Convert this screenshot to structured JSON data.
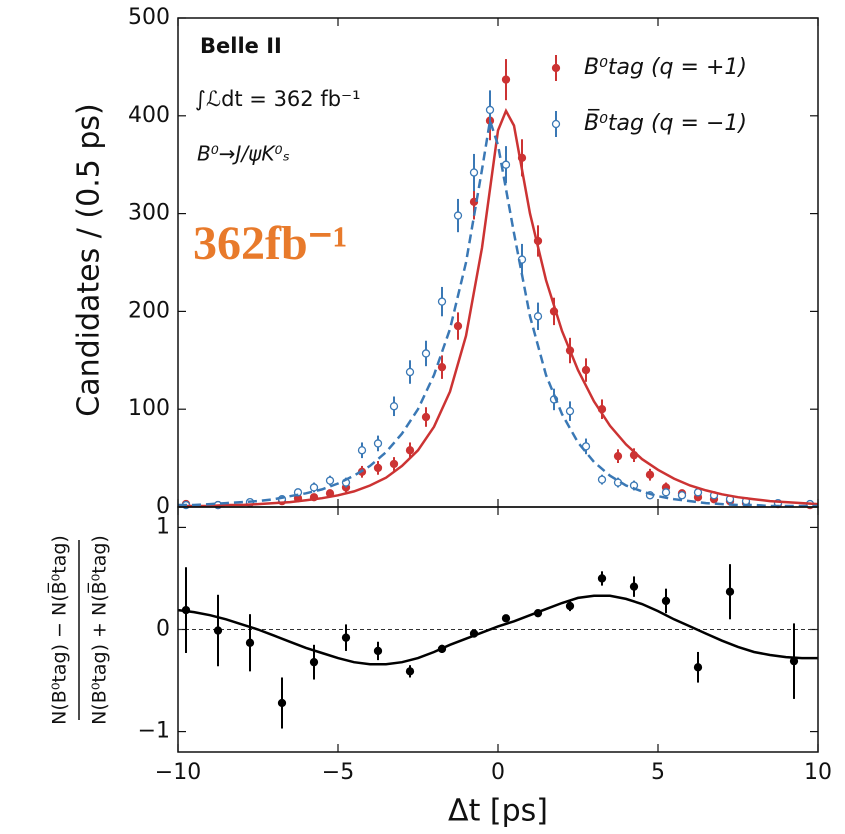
{
  "chart_data": [
    {
      "type": "errorbar",
      "annotations": [
        "Belle II",
        "∫ℒdt = 362 fb⁻¹",
        "B⁰→J/ψK⁰ₛ"
      ],
      "highlight": "362fb⁻¹",
      "ylabel": "Candidates / (0.5 ps)",
      "xlim": [
        -10,
        10
      ],
      "ylim": [
        0,
        500
      ],
      "xticks": [
        -10,
        -5,
        0,
        5,
        10
      ],
      "yticks": [
        0,
        100,
        200,
        300,
        400,
        500
      ],
      "x_tick_labels": false,
      "legend": "upper right",
      "series": [
        {
          "name": "B⁰tag (q = +1)",
          "color": "#cc3333",
          "marker": "filled",
          "x": [
            -9.75,
            -8.75,
            -7.75,
            -6.75,
            -6.25,
            -5.75,
            -5.25,
            -4.75,
            -4.25,
            -3.75,
            -3.25,
            -2.75,
            -2.25,
            -1.75,
            -1.25,
            -0.75,
            -0.25,
            0.25,
            0.75,
            1.25,
            1.75,
            2.25,
            2.75,
            3.25,
            3.75,
            4.25,
            4.75,
            5.25,
            5.75,
            6.25,
            6.75,
            7.25,
            7.75,
            8.75,
            9.75
          ],
          "values": [
            3,
            2,
            4,
            6,
            9,
            10,
            14,
            20,
            36,
            40,
            44,
            58,
            92,
            143,
            185,
            312,
            395,
            437,
            357,
            272,
            200,
            160,
            140,
            100,
            52,
            53,
            33,
            20,
            14,
            10,
            8,
            6,
            4,
            3,
            2
          ],
          "errors": [
            2,
            2,
            2,
            3,
            3,
            3,
            4,
            5,
            6,
            7,
            7,
            8,
            10,
            12,
            14,
            18,
            20,
            21,
            19,
            16,
            14,
            13,
            12,
            10,
            7,
            7,
            6,
            5,
            4,
            3,
            3,
            3,
            2,
            2,
            2
          ]
        },
        {
          "name": "B̅⁰tag (q = −1)",
          "color": "#3a78b5",
          "marker": "open",
          "x": [
            -9.75,
            -8.75,
            -7.75,
            -6.75,
            -6.25,
            -5.75,
            -5.25,
            -4.75,
            -4.25,
            -3.75,
            -3.25,
            -2.75,
            -2.25,
            -1.75,
            -1.25,
            -0.75,
            -0.25,
            0.25,
            0.75,
            1.25,
            1.75,
            2.25,
            2.75,
            3.25,
            3.75,
            4.25,
            4.75,
            5.25,
            5.75,
            6.25,
            6.75,
            7.25,
            7.75,
            8.75,
            9.75
          ],
          "values": [
            2,
            2,
            5,
            8,
            15,
            20,
            27,
            25,
            58,
            65,
            103,
            138,
            157,
            210,
            298,
            342,
            406,
            350,
            253,
            195,
            110,
            98,
            62,
            28,
            25,
            22,
            12,
            15,
            12,
            15,
            12,
            8,
            6,
            4,
            3
          ],
          "errors": [
            2,
            2,
            2,
            3,
            4,
            5,
            5,
            5,
            8,
            8,
            10,
            12,
            13,
            15,
            17,
            19,
            20,
            19,
            16,
            14,
            11,
            10,
            8,
            5,
            5,
            5,
            4,
            4,
            3,
            4,
            3,
            3,
            2,
            2,
            2
          ]
        },
        {
          "color": "#cc3333",
          "line": "solid",
          "x": [
            -10,
            -9.5,
            -9,
            -8.5,
            -8,
            -7.5,
            -7,
            -6.5,
            -6,
            -5.5,
            -5,
            -4.5,
            -4,
            -3.5,
            -3,
            -2.5,
            -2,
            -1.5,
            -1,
            -0.5,
            0,
            0.25,
            0.5,
            1,
            1.5,
            2,
            2.5,
            3,
            3.5,
            4,
            4.5,
            5,
            5.5,
            6,
            6.5,
            7,
            7.5,
            8,
            8.5,
            9,
            9.5,
            10
          ],
          "values": [
            1,
            1,
            1,
            2,
            2,
            3,
            4,
            5,
            7,
            9,
            12,
            16,
            22,
            30,
            42,
            58,
            82,
            118,
            175,
            265,
            385,
            405,
            390,
            300,
            232,
            180,
            140,
            108,
            83,
            64,
            49,
            38,
            29,
            22,
            17,
            13,
            10,
            8,
            6,
            5,
            4,
            3
          ]
        },
        {
          "color": "#3a78b5",
          "line": "dashed",
          "x": [
            -10,
            -9.5,
            -9,
            -8.5,
            -8,
            -7.5,
            -7,
            -6.5,
            -6,
            -5.5,
            -5,
            -4.5,
            -4,
            -3.5,
            -3,
            -2.5,
            -2,
            -1.5,
            -1,
            -0.5,
            -0.25,
            0,
            0.5,
            1,
            1.5,
            2,
            2.5,
            3,
            3.5,
            4,
            4.5,
            5,
            5.5,
            6,
            6.5,
            7,
            7.5,
            8,
            8.5,
            9,
            9.5,
            10
          ],
          "values": [
            2,
            2,
            3,
            4,
            5,
            6,
            8,
            11,
            14,
            18,
            24,
            32,
            42,
            56,
            75,
            100,
            135,
            182,
            250,
            345,
            395,
            370,
            280,
            195,
            135,
            95,
            66,
            46,
            32,
            22,
            16,
            11,
            8,
            6,
            4,
            3,
            2,
            2,
            1,
            1,
            1,
            1
          ]
        }
      ]
    },
    {
      "type": "errorbar",
      "xlabel": "Δt [ps]",
      "ylabel_numerator": "N(B⁰tag) − N(B̅⁰tag)",
      "ylabel_denominator": "N(B⁰tag) + N(B̅⁰tag)",
      "xlim": [
        -10,
        10
      ],
      "ylim": [
        -1.2,
        1.2
      ],
      "xticks": [
        {
          "value": -10,
          "label": "−10"
        },
        {
          "value": -5,
          "label": "−5"
        },
        0,
        5,
        10
      ],
      "yticks": [
        {
          "value": -1,
          "label": "−1"
        },
        0,
        1
      ],
      "x_tick_labels": true,
      "hline": 0,
      "series": [
        {
          "color": "#000000",
          "marker": "filled",
          "x": [
            -9.75,
            -8.75,
            -7.75,
            -6.75,
            -5.75,
            -4.75,
            -3.75,
            -2.75,
            -1.75,
            -0.75,
            0.25,
            1.25,
            2.25,
            3.25,
            4.25,
            5.25,
            6.25,
            7.25,
            9.25
          ],
          "values": [
            0.19,
            -0.01,
            -0.13,
            -0.72,
            -0.32,
            -0.08,
            -0.21,
            -0.41,
            -0.19,
            -0.04,
            0.11,
            0.16,
            0.23,
            0.5,
            0.42,
            0.28,
            -0.37,
            0.37,
            -0.31
          ],
          "errors": [
            0.42,
            0.35,
            0.28,
            0.25,
            0.17,
            0.13,
            0.09,
            0.06,
            0.04,
            0.03,
            0.03,
            0.03,
            0.05,
            0.07,
            0.1,
            0.12,
            0.15,
            0.27,
            0.37
          ]
        },
        {
          "color": "#000000",
          "line": "solid",
          "x": [
            -10,
            -9.5,
            -9,
            -8.5,
            -8,
            -7.5,
            -7,
            -6.5,
            -6,
            -5.5,
            -5,
            -4.5,
            -4,
            -3.5,
            -3,
            -2.5,
            -2,
            -1.5,
            -1,
            -0.5,
            0,
            0.5,
            1,
            1.5,
            2,
            2.5,
            3,
            3.5,
            4,
            4.5,
            5,
            5.5,
            6,
            6.5,
            7,
            7.5,
            8,
            8.5,
            9,
            9.5,
            10
          ],
          "values": [
            0.19,
            0.17,
            0.14,
            0.1,
            0.05,
            0,
            -0.06,
            -0.12,
            -0.18,
            -0.23,
            -0.28,
            -0.32,
            -0.34,
            -0.34,
            -0.32,
            -0.28,
            -0.22,
            -0.15,
            -0.09,
            -0.03,
            0.03,
            0.08,
            0.14,
            0.2,
            0.26,
            0.31,
            0.33,
            0.33,
            0.3,
            0.25,
            0.18,
            0.1,
            0.03,
            -0.04,
            -0.11,
            -0.17,
            -0.22,
            -0.25,
            -0.27,
            -0.28,
            -0.28
          ]
        }
      ]
    }
  ]
}
